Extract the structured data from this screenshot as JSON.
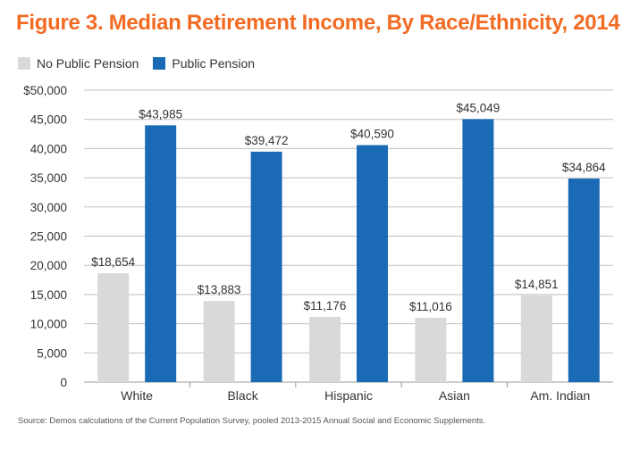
{
  "colors": {
    "title": "#f26b23",
    "no_pension": "#d9d9d9",
    "pension": "#1b6ab5",
    "grid": "#bfbfbf"
  },
  "chart_data": {
    "type": "bar",
    "title": "Figure 3. Median Retirement Income, By Race/Ethnicity, 2014",
    "categories": [
      "White",
      "Black",
      "Hispanic",
      "Asian",
      "Am. Indian"
    ],
    "series": [
      {
        "name": "No Public Pension",
        "values": [
          18654,
          13883,
          11176,
          11016,
          14851
        ],
        "labels": [
          "$18,654",
          "$13,883",
          "$11,176",
          "$11,016",
          "$14,851"
        ]
      },
      {
        "name": "Public Pension",
        "values": [
          43985,
          39472,
          40590,
          45049,
          34864
        ],
        "labels": [
          "$43,985",
          "$39,472",
          "$40,590",
          "$45,049",
          "$34,864"
        ]
      }
    ],
    "ylim": [
      0,
      50000
    ],
    "yticks": [
      0,
      5000,
      10000,
      15000,
      20000,
      25000,
      30000,
      35000,
      40000,
      45000,
      50000
    ],
    "ytick_labels": [
      "0",
      "5,000",
      "10,000",
      "15,000",
      "20,000",
      "25,000",
      "30,000",
      "35,000",
      "40,000",
      "45,000",
      "$50,000"
    ],
    "grid": true,
    "legend_position": "top-left",
    "xlabel": "",
    "ylabel": ""
  },
  "source": "Source: Demos calculations of the Current Population Survey, pooled 2013-2015 Annual Social and Economic Supplements."
}
